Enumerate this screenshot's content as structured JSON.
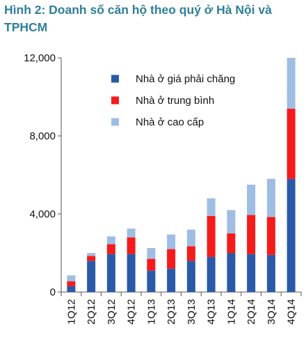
{
  "chart_data": {
    "type": "bar",
    "stacked": true,
    "title": "Hình 2: Doanh số căn hộ theo quý ở Hà Nội và TPHCM",
    "xlabel": "",
    "ylabel": "",
    "categories": [
      "1Q12",
      "2Q12",
      "3Q12",
      "4Q12",
      "1Q13",
      "2Q13",
      "3Q13",
      "4Q13",
      "1Q14",
      "2Q14",
      "3Q14",
      "4Q14"
    ],
    "ylim": [
      0,
      12000
    ],
    "yticks": [
      0,
      4000,
      8000,
      12000
    ],
    "ytick_labels": [
      "0",
      "4,000",
      "8,000",
      "12,000"
    ],
    "grid": false,
    "legend_position": "top-center",
    "series": [
      {
        "name": "Nhà ở giá phải chăng",
        "color": "#2a5aa7",
        "values": [
          300,
          1600,
          1950,
          1950,
          1100,
          1200,
          1600,
          1800,
          2000,
          1950,
          1900,
          5800
        ]
      },
      {
        "name": "Nhà ở trung bình",
        "color": "#f51b1b",
        "values": [
          250,
          250,
          500,
          850,
          600,
          1000,
          750,
          2100,
          1000,
          2000,
          1950,
          3600
        ]
      },
      {
        "name": "Nhà ở cao cấp",
        "color": "#9fbde3",
        "values": [
          300,
          150,
          400,
          450,
          550,
          750,
          850,
          900,
          1200,
          1550,
          1950,
          2600
        ]
      }
    ]
  }
}
